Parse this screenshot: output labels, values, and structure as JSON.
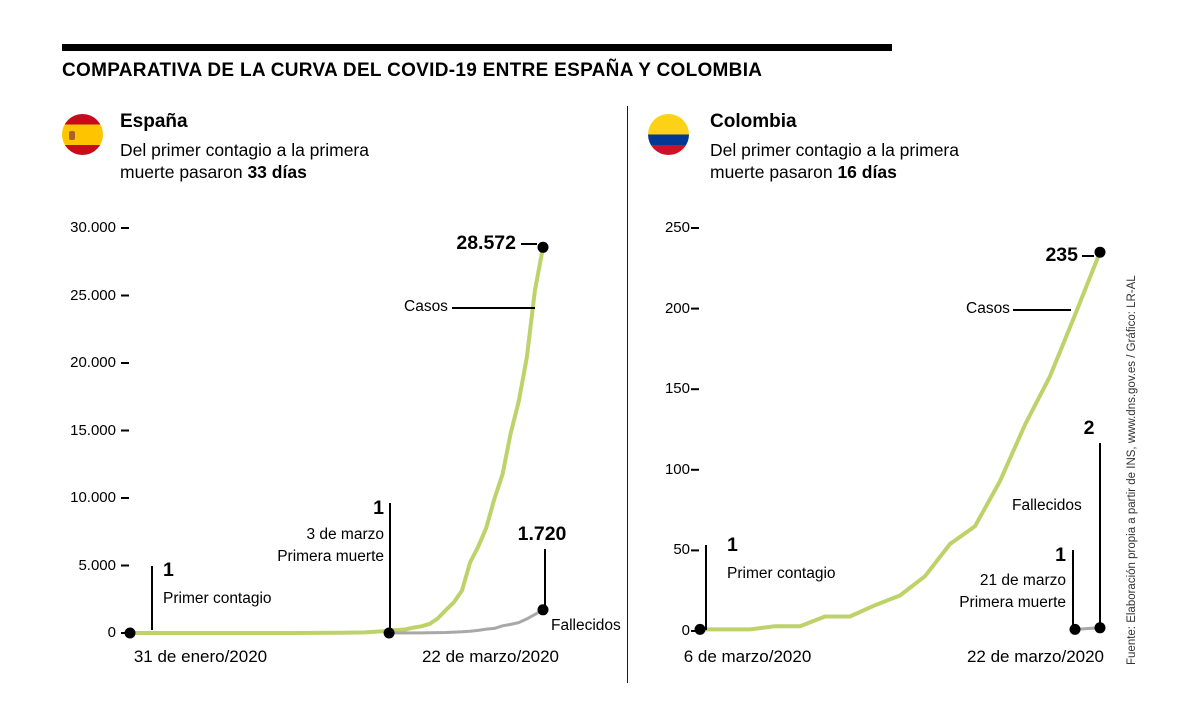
{
  "title": "COMPARATIVA DE LA CURVA DEL COVID-19 ENTRE ESPAÑA Y COLOMBIA",
  "source": "Fuente: Elaboración propia a partir de INS, www.dns.gov.es / Gráfico: LR-AL",
  "colors": {
    "casos_line": "#bed26a",
    "fallecidos_line": "#a8a8a8",
    "marker_dot": "#000000"
  },
  "panels": [
    {
      "country": "España",
      "desc_line1": "Del primer contagio a la primera",
      "desc_line2": "muerte pasaron",
      "desc_days": "33 días",
      "flag_stripes": [
        {
          "color": "#c60b1e",
          "pct": 25
        },
        {
          "color": "#ffc400",
          "pct": 50
        },
        {
          "color": "#c60b1e",
          "pct": 25
        }
      ]
    },
    {
      "country": "Colombia",
      "desc_line1": "Del primer contagio a la primera",
      "desc_line2": "muerte pasaron",
      "desc_days": "16 días",
      "flag_stripes": [
        {
          "color": "#fcd116",
          "pct": 50
        },
        {
          "color": "#003893",
          "pct": 25
        },
        {
          "color": "#ce1126",
          "pct": 25
        }
      ]
    }
  ],
  "chart_data": [
    {
      "type": "line",
      "country": "España",
      "x_range_days": [
        0,
        51
      ],
      "x_tick_labels": [
        "31 de enero/2020",
        "22 de marzo/2020"
      ],
      "ylim": [
        0,
        30000
      ],
      "y_ticks": [
        0,
        5000,
        10000,
        15000,
        20000,
        25000,
        30000
      ],
      "y_tick_labels": [
        "0",
        "5.000",
        "10.000",
        "15.000",
        "20.000",
        "25.000",
        "30.000"
      ],
      "legend_position": "inline-annotations",
      "grid": false,
      "annotations": {
        "casos_label": "Casos",
        "fallecidos_label": "Fallecidos",
        "final_casos": "28.572",
        "final_fallecidos": "1.720",
        "first_case_value": "1",
        "first_case_label": "Primer contagio",
        "first_death_value": "1",
        "first_death_date": "3 de marzo",
        "first_death_label": "Primera muerte"
      },
      "series": [
        {
          "name": "Casos",
          "color": "#bed26a",
          "width": 4,
          "points": [
            [
              0,
              1
            ],
            [
              20,
              2
            ],
            [
              26,
              13
            ],
            [
              29,
              45
            ],
            [
              30,
              84
            ],
            [
              31,
              120
            ],
            [
              32,
              165
            ],
            [
              33,
              222
            ],
            [
              34,
              259
            ],
            [
              35,
              400
            ],
            [
              36,
              500
            ],
            [
              37,
              673
            ],
            [
              38,
              1073
            ],
            [
              39,
              1695
            ],
            [
              40,
              2277
            ],
            [
              41,
              3146
            ],
            [
              42,
              5232
            ],
            [
              43,
              6391
            ],
            [
              44,
              7798
            ],
            [
              45,
              9942
            ],
            [
              46,
              11748
            ],
            [
              47,
              14769
            ],
            [
              48,
              17147
            ],
            [
              49,
              20410
            ],
            [
              50,
              25374
            ],
            [
              51,
              28572
            ]
          ]
        },
        {
          "name": "Fallecidos",
          "color": "#a8a8a8",
          "width": 3,
          "points": [
            [
              32,
              1
            ],
            [
              36,
              10
            ],
            [
              37,
              17
            ],
            [
              39,
              35
            ],
            [
              41,
              86
            ],
            [
              42,
              133
            ],
            [
              43,
              195
            ],
            [
              44,
              289
            ],
            [
              45,
              342
            ],
            [
              46,
              533
            ],
            [
              47,
              638
            ],
            [
              48,
              767
            ],
            [
              49,
              1043
            ],
            [
              50,
              1375
            ],
            [
              51,
              1720
            ]
          ]
        }
      ]
    },
    {
      "type": "line",
      "country": "Colombia",
      "x_range_days": [
        0,
        16
      ],
      "x_tick_labels": [
        "6 de marzo/2020",
        "22 de marzo/2020"
      ],
      "ylim": [
        0,
        250
      ],
      "y_ticks": [
        0,
        50,
        100,
        150,
        200,
        250
      ],
      "y_tick_labels": [
        "0",
        "50",
        "100",
        "150",
        "200",
        "250"
      ],
      "legend_position": "inline-annotations",
      "grid": false,
      "annotations": {
        "casos_label": "Casos",
        "fallecidos_label": "Fallecidos",
        "final_casos": "235",
        "final_fallecidos": "2",
        "first_case_value": "1",
        "first_case_label": "Primer contagio",
        "first_death_value": "1",
        "first_death_date": "21 de marzo",
        "first_death_label": "Primera muerte"
      },
      "series": [
        {
          "name": "Casos",
          "color": "#bed26a",
          "width": 4,
          "points": [
            [
              0,
              1
            ],
            [
              1,
              1
            ],
            [
              2,
              1
            ],
            [
              3,
              3
            ],
            [
              4,
              3
            ],
            [
              5,
              9
            ],
            [
              6,
              9
            ],
            [
              7,
              16
            ],
            [
              8,
              22
            ],
            [
              9,
              34
            ],
            [
              10,
              54
            ],
            [
              11,
              65
            ],
            [
              12,
              93
            ],
            [
              13,
              128
            ],
            [
              14,
              158
            ],
            [
              15,
              196
            ],
            [
              16,
              235
            ]
          ]
        },
        {
          "name": "Fallecidos",
          "color": "#a8a8a8",
          "width": 3,
          "points": [
            [
              15,
              1
            ],
            [
              16,
              2
            ]
          ]
        }
      ]
    }
  ]
}
